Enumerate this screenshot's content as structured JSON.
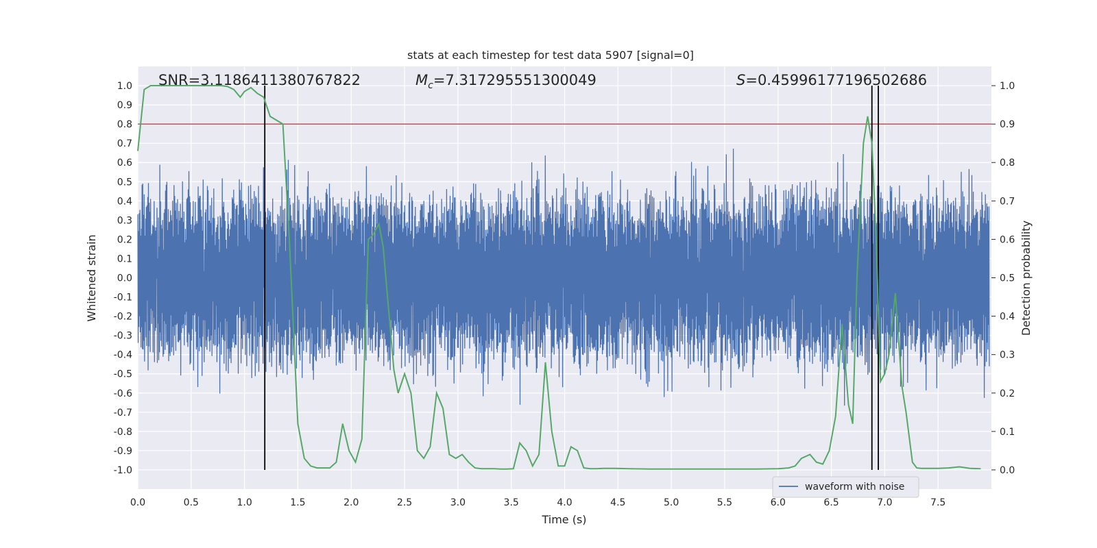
{
  "chart_data": {
    "type": "line",
    "title": "stats at each timestep for test data 5907 [signal=0]",
    "xlabel": "Time (s)",
    "ylabel_left": "Whitened strain",
    "ylabel_right": "Detection probability",
    "xlim": [
      0.0,
      8.0
    ],
    "ylim_left": [
      -1.1,
      1.1
    ],
    "ylim_right": [
      -0.05,
      1.05
    ],
    "x_ticks": [
      "0.0",
      "0.5",
      "1.0",
      "1.5",
      "2.0",
      "2.5",
      "3.0",
      "3.5",
      "4.0",
      "4.5",
      "5.0",
      "5.5",
      "6.0",
      "6.5",
      "7.0",
      "7.5"
    ],
    "y_left_ticks": [
      "1.0",
      "0.9",
      "0.8",
      "0.7",
      "0.6",
      "0.5",
      "0.4",
      "0.3",
      "0.2",
      "0.1",
      "0.0",
      "-0.1",
      "-0.2",
      "-0.3",
      "-0.4",
      "-0.5",
      "-0.6",
      "-0.7",
      "-0.8",
      "-0.9",
      "-1.0"
    ],
    "y_right_ticks": [
      "1.0",
      "0.9",
      "0.8",
      "0.7",
      "0.6",
      "0.5",
      "0.4",
      "0.3",
      "0.2",
      "0.1",
      "0.0"
    ],
    "grid": true,
    "legend": {
      "placement": "lower-right",
      "entries": [
        "waveform with noise"
      ]
    },
    "annotations": {
      "snr": "SNR=3.1186411380767822",
      "mc_value": "=7.317295551300049",
      "s_value": "=0.45996177196502686"
    },
    "threshold": {
      "value": 0.9,
      "axis": "right",
      "color": "#c44e52"
    },
    "vlines": [
      1.19,
      6.88,
      6.94
    ],
    "colors": {
      "waveform": "#4c72b0",
      "probability": "#55a868",
      "threshold": "#c44e52",
      "vline": "#000000",
      "plot_bg": "#eaeaf2"
    },
    "probability_series": {
      "name": "",
      "x": [
        0.0,
        0.06,
        0.12,
        0.18,
        0.24,
        0.3,
        0.36,
        0.42,
        0.48,
        0.54,
        0.6,
        0.66,
        0.72,
        0.78,
        0.84,
        0.9,
        0.96,
        1.0,
        1.06,
        1.12,
        1.18,
        1.24,
        1.3,
        1.36,
        1.42,
        1.5,
        1.56,
        1.62,
        1.68,
        1.74,
        1.8,
        1.86,
        1.92,
        1.98,
        2.04,
        2.1,
        2.16,
        2.2,
        2.26,
        2.3,
        2.34,
        2.4,
        2.44,
        2.5,
        2.56,
        2.62,
        2.68,
        2.74,
        2.8,
        2.86,
        2.92,
        2.98,
        3.04,
        3.1,
        3.16,
        3.22,
        3.28,
        3.34,
        3.4,
        3.46,
        3.52,
        3.58,
        3.64,
        3.7,
        3.76,
        3.82,
        3.88,
        3.94,
        4.0,
        4.06,
        4.12,
        4.18,
        4.24,
        4.3,
        4.36,
        4.42,
        4.48,
        4.6,
        4.8,
        5.0,
        5.2,
        5.4,
        5.6,
        5.8,
        6.0,
        6.1,
        6.16,
        6.22,
        6.3,
        6.36,
        6.42,
        6.48,
        6.54,
        6.6,
        6.66,
        6.7,
        6.74,
        6.8,
        6.84,
        6.88,
        6.92,
        6.96,
        7.0,
        7.04,
        7.1,
        7.16,
        7.2,
        7.26,
        7.3,
        7.34,
        7.4,
        7.5,
        7.6,
        7.7,
        7.8,
        7.9
      ],
      "values": [
        0.83,
        0.99,
        1.0,
        1.0,
        1.0,
        1.0,
        1.0,
        1.0,
        1.0,
        1.0,
        1.0,
        1.0,
        1.0,
        1.0,
        0.998,
        0.99,
        0.97,
        0.985,
        0.995,
        0.98,
        0.97,
        0.92,
        0.91,
        0.9,
        0.6,
        0.12,
        0.03,
        0.01,
        0.005,
        0.005,
        0.005,
        0.02,
        0.12,
        0.05,
        0.02,
        0.08,
        0.6,
        0.61,
        0.64,
        0.58,
        0.45,
        0.26,
        0.2,
        0.25,
        0.2,
        0.05,
        0.03,
        0.06,
        0.2,
        0.16,
        0.04,
        0.03,
        0.04,
        0.02,
        0.005,
        0.003,
        0.003,
        0.003,
        0.002,
        0.002,
        0.003,
        0.07,
        0.05,
        0.01,
        0.04,
        0.28,
        0.1,
        0.01,
        0.01,
        0.06,
        0.05,
        0.005,
        0.003,
        0.003,
        0.004,
        0.004,
        0.004,
        0.003,
        0.002,
        0.002,
        0.002,
        0.002,
        0.002,
        0.002,
        0.003,
        0.005,
        0.01,
        0.03,
        0.04,
        0.02,
        0.015,
        0.05,
        0.14,
        0.38,
        0.17,
        0.12,
        0.5,
        0.85,
        0.92,
        0.85,
        0.6,
        0.23,
        0.25,
        0.3,
        0.46,
        0.22,
        0.15,
        0.02,
        0.005,
        0.004,
        0.004,
        0.004,
        0.005,
        0.008,
        0.004,
        0.003
      ]
    }
  }
}
